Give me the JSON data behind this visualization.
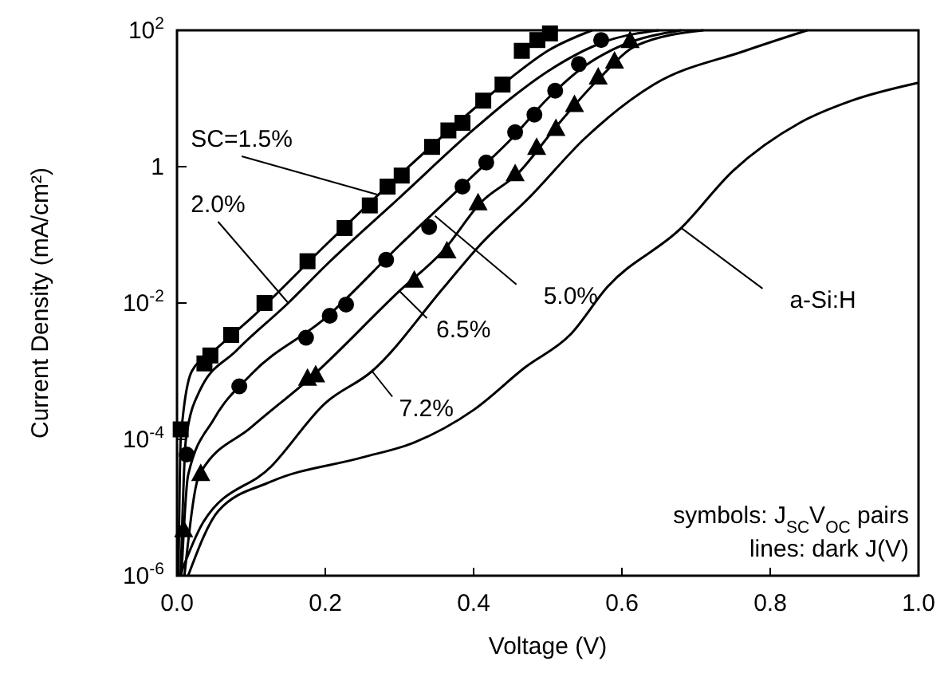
{
  "chart_data": {
    "type": "line",
    "xlabel": "Voltage (V)",
    "ylabel": "Current Density (mA/cm²)",
    "log": "y",
    "grid": false,
    "xlim": [
      0,
      1
    ],
    "xticks": [
      {
        "value": 0,
        "label": "0.0"
      },
      0.2,
      0.4,
      0.6,
      0.8,
      {
        "value": 1,
        "label": "1.0"
      }
    ],
    "ylim": [
      1e-06,
      100
    ],
    "yticks": [
      {
        "value": 1e-06,
        "label": "10$^{-6}$"
      },
      {
        "value": 0.0001,
        "label": "10$^{-4}$"
      },
      {
        "value": 0.01,
        "label": "10$^{-2}$"
      },
      1,
      {
        "value": 100,
        "label": "10$^{2}$"
      }
    ],
    "series": [
      {
        "color": "#000000",
        "marker": "none",
        "line_style": "solid",
        "x": [
          0.002,
          0.005,
          0.02,
          0.05,
          0.1,
          0.2,
          0.3,
          0.4,
          0.45,
          0.5,
          0.56
        ],
        "values": [
          1e-06,
          0.0001,
          0.001,
          0.002,
          0.006,
          0.07,
          0.75,
          7,
          20,
          50,
          100
        ]
      },
      {
        "color": "#000000",
        "marker": "none",
        "line_style": "solid",
        "x": [
          0.005,
          0.012,
          0.03,
          0.08,
          0.15,
          0.2,
          0.3,
          0.4,
          0.45,
          0.5,
          0.58,
          0.65
        ],
        "values": [
          1e-06,
          0.0001,
          0.0005,
          0.002,
          0.01,
          0.035,
          0.35,
          3.5,
          10,
          25,
          70,
          100
        ]
      },
      {
        "color": "#000000",
        "marker": "none",
        "line_style": "solid",
        "x": [
          0.006,
          0.015,
          0.05,
          0.1,
          0.2,
          0.3,
          0.4,
          0.45,
          0.5,
          0.55,
          0.6,
          0.68
        ],
        "values": [
          1e-06,
          3e-05,
          0.0002,
          0.0009,
          0.006,
          0.07,
          0.75,
          2.5,
          10,
          30,
          60,
          100
        ]
      },
      {
        "color": "#000000",
        "marker": "none",
        "line_style": "solid",
        "x": [
          0.01,
          0.03,
          0.1,
          0.18,
          0.3,
          0.36,
          0.41,
          0.46,
          0.51,
          0.57,
          0.62,
          0.71
        ],
        "values": [
          1e-06,
          3e-05,
          0.00015,
          0.0008,
          0.015,
          0.06,
          0.3,
          0.8,
          3.7,
          20,
          60,
          100
        ]
      },
      {
        "color": "#000000",
        "marker": "none",
        "line_style": "solid",
        "x": [
          0.004,
          0.035,
          0.127,
          0.2,
          0.263,
          0.36,
          0.406,
          0.477,
          0.55,
          0.643,
          0.766,
          0.85
        ],
        "values": [
          1e-06,
          6e-06,
          4e-05,
          0.00034,
          0.001,
          0.017,
          0.066,
          0.37,
          2.6,
          16,
          50,
          100
        ]
      },
      {
        "color": "#000000",
        "marker": "none",
        "line_style": "solid",
        "x": [
          0.015,
          0.056,
          0.127,
          0.249,
          0.32,
          0.4,
          0.47,
          0.53,
          0.58,
          0.68,
          0.75,
          0.84,
          0.91,
          1.0
        ],
        "values": [
          1e-06,
          9e-06,
          2.4e-05,
          5.4e-05,
          9e-05,
          0.00027,
          0.00115,
          0.0034,
          0.017,
          0.126,
          0.87,
          4.4,
          9.3,
          17
        ]
      },
      {
        "type": "scatter",
        "color": "#000000",
        "marker": "square",
        "x": [
          0.005,
          0.037,
          0.045,
          0.073,
          0.118,
          0.176,
          0.226,
          0.26,
          0.284,
          0.303,
          0.344,
          0.366,
          0.385,
          0.413,
          0.439,
          0.465,
          0.486,
          0.503
        ],
        "values": [
          0.00014,
          0.0013,
          0.0017,
          0.0034,
          0.01,
          0.041,
          0.126,
          0.27,
          0.51,
          0.74,
          1.95,
          3.4,
          4.4,
          9.3,
          16,
          50,
          72,
          90
        ]
      },
      {
        "type": "scatter",
        "color": "#000000",
        "marker": "circle",
        "x": [
          0.013,
          0.084,
          0.174,
          0.206,
          0.228,
          0.282,
          0.34,
          0.385,
          0.417,
          0.456,
          0.482,
          0.51,
          0.542,
          0.572
        ],
        "values": [
          6e-05,
          0.0006,
          0.0031,
          0.0065,
          0.0095,
          0.043,
          0.13,
          0.51,
          1.15,
          3.2,
          5.8,
          13,
          32,
          72
        ]
      },
      {
        "type": "scatter",
        "color": "#000000",
        "marker": "triangle",
        "x": [
          0.009,
          0.032,
          0.176,
          0.187,
          0.32,
          0.364,
          0.406,
          0.456,
          0.485,
          0.511,
          0.536,
          0.568,
          0.59,
          0.611
        ],
        "values": [
          4.8e-06,
          3.2e-05,
          0.0008,
          0.0009,
          0.022,
          0.059,
          0.3,
          0.8,
          1.95,
          3.7,
          8.3,
          21,
          36,
          72
        ]
      }
    ],
    "annotations": [
      {
        "text": "SC=1.5%",
        "x": 0.27,
        "y": 0.39
      },
      {
        "text": "2.0%",
        "x": 0.15,
        "y": 0.01
      },
      {
        "text": "5.0%",
        "x": 0.348,
        "y": 0.19
      },
      {
        "text": "6.5%",
        "x": 0.3,
        "y": 0.015
      },
      {
        "text": "7.2%",
        "x": 0.263,
        "y": 0.001
      },
      {
        "text": "a-Si:H",
        "x": 0.68,
        "y": 0.126
      },
      "symbols: J$_{SC}$V$_{OC}$ pairs",
      "lines: dark J(V)"
    ]
  }
}
